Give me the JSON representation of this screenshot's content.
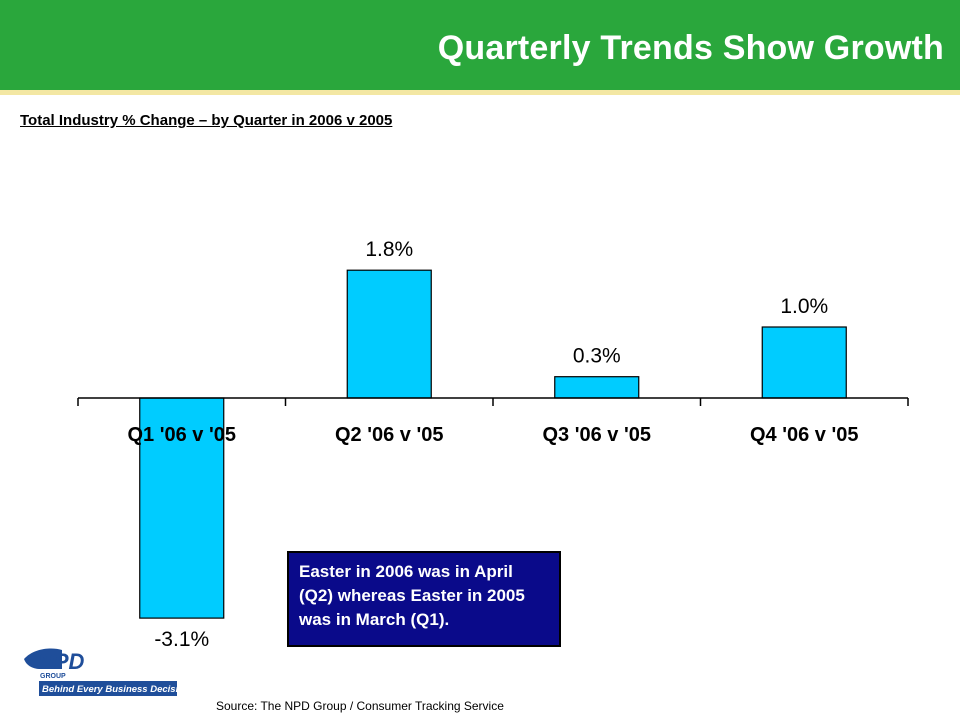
{
  "header": {
    "title": "Quarterly Trends Show Growth"
  },
  "subtitle": "Total Industry % Change – by Quarter in 2006 v 2005",
  "chart_data": {
    "type": "bar",
    "categories": [
      "Q1 '06 v '05",
      "Q2 '06 v '05",
      "Q3 '06 v '05",
      "Q4 '06 v '05"
    ],
    "values": [
      -3.1,
      1.8,
      0.3,
      1.0
    ],
    "data_labels": [
      "-3.1%",
      "1.8%",
      "0.3%",
      "1.0%"
    ],
    "unit": "%",
    "ylim": [
      -3.1,
      1.8
    ],
    "grid": false,
    "legend": "none",
    "bar_color": "#00ccff"
  },
  "callout": {
    "text": "Easter in 2006 was in April (Q2) whereas Easter in 2005 was in March (Q1)."
  },
  "logo": {
    "brand": "NPD",
    "sub": "GROUP",
    "tagline": "Behind Every Business Decision"
  },
  "source": "Source:  The NPD Group / Consumer Tracking Service",
  "colors": {
    "header_green": "#2aa73c",
    "accent_rule": "#f3e7a3",
    "bar": "#00ccff",
    "callout_bg": "#0a0a8a",
    "logo_blue": "#1f4e9a"
  }
}
